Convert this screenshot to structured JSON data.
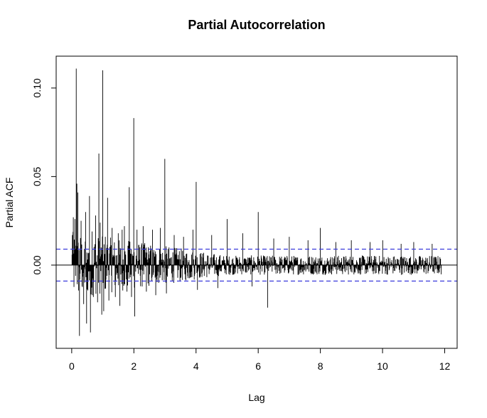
{
  "chart_data": {
    "type": "bar",
    "title": "Partial Autocorrelation",
    "xlabel": "Lag",
    "ylabel": "Partial ACF",
    "xlim": [
      -0.5,
      12.4
    ],
    "ylim": [
      -0.047,
      0.118
    ],
    "x_ticks": [
      0,
      2,
      4,
      6,
      8,
      10,
      12
    ],
    "x_tick_labels": [
      "0",
      "2",
      "4",
      "6",
      "8",
      "10",
      "12"
    ],
    "y_ticks": [
      0.0,
      0.05,
      0.1
    ],
    "y_tick_labels": [
      "0.00",
      "0.05",
      "0.10"
    ],
    "zero_line": 0,
    "confidence_bounds": {
      "upper": 0.009,
      "lower": -0.009,
      "color": "#3b3bdb",
      "style": "dashed"
    },
    "bar_color": "#000000",
    "lag_step": 0.0104,
    "lag_max": 11.9,
    "noise_amplitude_start": 0.019,
    "noise_amplitude_end": 0.0055,
    "spikes": [
      {
        "x": 0.02,
        "y": 0.017
      },
      {
        "x": 0.05,
        "y": 0.027
      },
      {
        "x": 0.1,
        "y": 0.026
      },
      {
        "x": 0.15,
        "y": 0.111
      },
      {
        "x": 0.17,
        "y": 0.046
      },
      {
        "x": 0.2,
        "y": 0.041
      },
      {
        "x": 0.25,
        "y": -0.04
      },
      {
        "x": 0.3,
        "y": 0.025
      },
      {
        "x": 0.38,
        "y": -0.022
      },
      {
        "x": 0.45,
        "y": 0.03
      },
      {
        "x": 0.48,
        "y": -0.033
      },
      {
        "x": 0.57,
        "y": 0.039
      },
      {
        "x": 0.6,
        "y": -0.038
      },
      {
        "x": 0.65,
        "y": 0.019
      },
      {
        "x": 0.7,
        "y": -0.018
      },
      {
        "x": 0.77,
        "y": 0.028
      },
      {
        "x": 0.83,
        "y": -0.021
      },
      {
        "x": 0.87,
        "y": 0.063
      },
      {
        "x": 0.92,
        "y": 0.024
      },
      {
        "x": 0.97,
        "y": -0.028
      },
      {
        "x": 1.0,
        "y": 0.11
      },
      {
        "x": 1.03,
        "y": -0.026
      },
      {
        "x": 1.08,
        "y": 0.016
      },
      {
        "x": 1.15,
        "y": 0.038
      },
      {
        "x": 1.2,
        "y": -0.02
      },
      {
        "x": 1.3,
        "y": 0.021
      },
      {
        "x": 1.4,
        "y": -0.018
      },
      {
        "x": 1.5,
        "y": 0.018
      },
      {
        "x": 1.55,
        "y": -0.023
      },
      {
        "x": 1.62,
        "y": 0.02
      },
      {
        "x": 1.7,
        "y": 0.022
      },
      {
        "x": 1.78,
        "y": -0.015
      },
      {
        "x": 1.85,
        "y": 0.044
      },
      {
        "x": 1.92,
        "y": -0.018
      },
      {
        "x": 2.0,
        "y": 0.083
      },
      {
        "x": 2.03,
        "y": -0.029
      },
      {
        "x": 2.1,
        "y": 0.02
      },
      {
        "x": 2.3,
        "y": 0.022
      },
      {
        "x": 2.4,
        "y": -0.015
      },
      {
        "x": 2.6,
        "y": 0.02
      },
      {
        "x": 2.7,
        "y": -0.017
      },
      {
        "x": 2.85,
        "y": 0.021
      },
      {
        "x": 3.0,
        "y": 0.06
      },
      {
        "x": 3.05,
        "y": -0.016
      },
      {
        "x": 3.3,
        "y": 0.017
      },
      {
        "x": 3.6,
        "y": 0.016
      },
      {
        "x": 3.9,
        "y": 0.02
      },
      {
        "x": 4.0,
        "y": 0.047
      },
      {
        "x": 4.05,
        "y": -0.014
      },
      {
        "x": 4.5,
        "y": 0.017
      },
      {
        "x": 4.7,
        "y": -0.013
      },
      {
        "x": 5.0,
        "y": 0.026
      },
      {
        "x": 5.5,
        "y": 0.018
      },
      {
        "x": 5.8,
        "y": -0.012
      },
      {
        "x": 6.0,
        "y": 0.03
      },
      {
        "x": 6.3,
        "y": -0.024
      },
      {
        "x": 6.5,
        "y": 0.015
      },
      {
        "x": 7.0,
        "y": 0.016
      },
      {
        "x": 7.6,
        "y": 0.014
      },
      {
        "x": 8.0,
        "y": 0.021
      },
      {
        "x": 8.5,
        "y": 0.013
      },
      {
        "x": 9.0,
        "y": 0.014
      },
      {
        "x": 9.6,
        "y": 0.013
      },
      {
        "x": 10.0,
        "y": 0.014
      },
      {
        "x": 10.6,
        "y": 0.012
      },
      {
        "x": 11.0,
        "y": 0.013
      },
      {
        "x": 11.6,
        "y": 0.012
      }
    ]
  }
}
